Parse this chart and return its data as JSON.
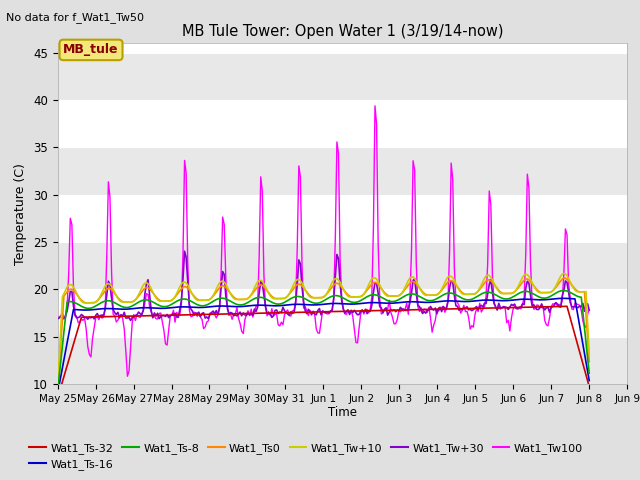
{
  "title": "MB Tule Tower: Open Water 1 (3/19/14-now)",
  "top_left_text": "No data for f_Wat1_Tw50",
  "xlabel": "Time",
  "ylabel": "Temperature (C)",
  "ylim": [
    10,
    46
  ],
  "yticks": [
    10,
    15,
    20,
    25,
    30,
    35,
    40,
    45
  ],
  "xtick_labels": [
    "May 25",
    "May 26",
    "May 27",
    "May 28",
    "May 29",
    "May 30",
    "May 31",
    "Jun 1",
    "Jun 2",
    "Jun 3",
    "Jun 4",
    "Jun 5",
    "Jun 6",
    "Jun 7",
    "Jun 8",
    "Jun 9"
  ],
  "legend_box_text": "MB_tule",
  "legend_box_facecolor": "#f5e87a",
  "legend_box_edgecolor": "#b8a000",
  "legend_box_textcolor": "#8b0000",
  "bg_color": "#e0e0e0",
  "plot_bg_color": "#ffffff",
  "band_color": "#e8e8e8",
  "series_colors": {
    "Wat1_Ts-32": "#cc0000",
    "Wat1_Ts-16": "#0000cc",
    "Wat1_Ts-8": "#00aa00",
    "Wat1_Ts0": "#ff8800",
    "Wat1_Tw+10": "#cccc00",
    "Wat1_Tw+30": "#8800cc",
    "Wat1_Tw100": "#ff00ff"
  },
  "n_points": 336,
  "days": 14,
  "base_temp": 17.0,
  "trend": 0.09
}
